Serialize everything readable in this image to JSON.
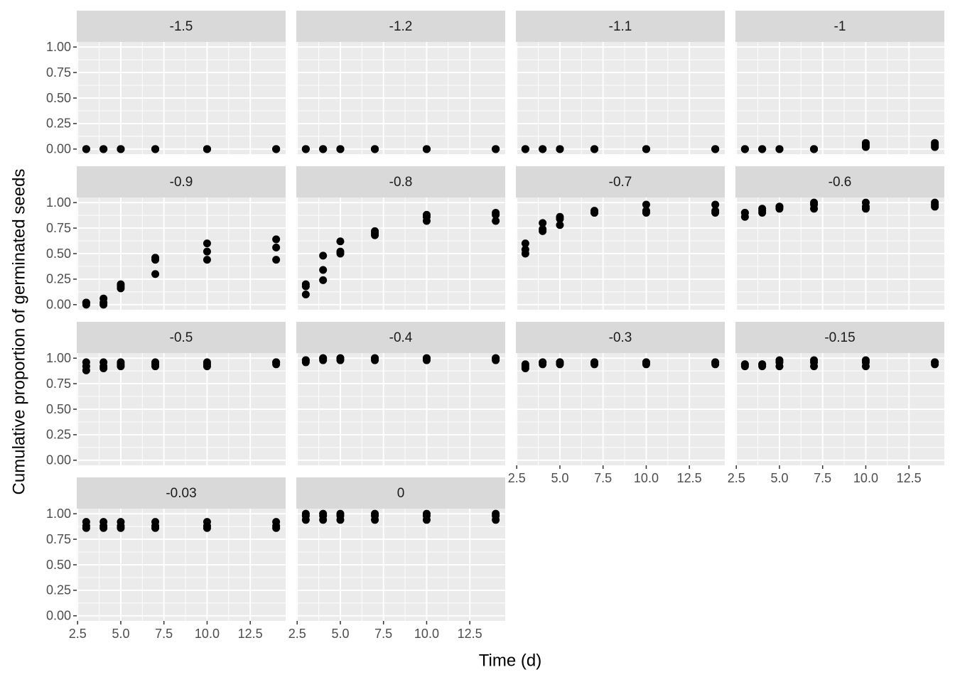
{
  "chart_data": {
    "type": "scatter",
    "xlabel": "Time (d)",
    "ylabel": "Cumulative proportion of germinated seeds",
    "color": "#000000",
    "grid": true,
    "xlim": [
      2.45,
      14.55
    ],
    "ylim": [
      -0.05,
      1.05
    ],
    "xticks": [
      2.5,
      {
        "value": 5,
        "label": "5.0"
      },
      7.5,
      {
        "value": 10,
        "label": "10.0"
      },
      12.5
    ],
    "yticks": [
      {
        "value": 0,
        "label": "0.00"
      },
      {
        "value": 0.25,
        "label": "0.25"
      },
      {
        "value": 0.5,
        "label": "0.50"
      },
      {
        "value": 0.75,
        "label": "0.75"
      },
      {
        "value": 1,
        "label": "1.00"
      }
    ],
    "panels": [
      {
        "title": "-1.5",
        "x": [
          3,
          3,
          3,
          4,
          4,
          4,
          5,
          5,
          5,
          7,
          7,
          7,
          10,
          10,
          10,
          14,
          14,
          14
        ],
        "y": [
          0,
          0,
          0,
          0,
          0,
          0,
          0,
          0,
          0,
          0,
          0,
          0,
          0,
          0,
          0,
          0,
          0,
          0
        ]
      },
      {
        "title": "-1.2",
        "x": [
          3,
          3,
          3,
          4,
          4,
          4,
          5,
          5,
          5,
          7,
          7,
          7,
          10,
          10,
          10,
          14,
          14,
          14
        ],
        "y": [
          0,
          0,
          0,
          0,
          0,
          0,
          0,
          0,
          0,
          0,
          0,
          0,
          0,
          0,
          0,
          0,
          0,
          0
        ]
      },
      {
        "title": "-1.1",
        "x": [
          3,
          3,
          3,
          4,
          4,
          4,
          5,
          5,
          5,
          7,
          7,
          7,
          10,
          10,
          10,
          14,
          14,
          14
        ],
        "y": [
          0,
          0,
          0,
          0,
          0,
          0,
          0,
          0,
          0,
          0,
          0,
          0,
          0,
          0,
          0,
          0,
          0,
          0
        ]
      },
      {
        "title": "-1",
        "x": [
          3,
          3,
          3,
          4,
          4,
          4,
          5,
          5,
          5,
          7,
          7,
          7,
          10,
          10,
          10,
          14,
          14,
          14
        ],
        "y": [
          0,
          0,
          0,
          0,
          0,
          0,
          0,
          0,
          0,
          0,
          0,
          0,
          0.02,
          0.04,
          0.06,
          0.02,
          0.04,
          0.06
        ]
      },
      {
        "title": "-0.9",
        "x": [
          3,
          3,
          3,
          4,
          4,
          4,
          5,
          5,
          5,
          7,
          7,
          7,
          10,
          10,
          10,
          14,
          14,
          14
        ],
        "y": [
          0,
          0.02,
          0.02,
          0,
          0.02,
          0.06,
          0.16,
          0.18,
          0.2,
          0.3,
          0.44,
          0.46,
          0.44,
          0.52,
          0.6,
          0.44,
          0.56,
          0.64
        ]
      },
      {
        "title": "-0.8",
        "x": [
          3,
          3,
          3,
          4,
          4,
          4,
          5,
          5,
          5,
          7,
          7,
          7,
          10,
          10,
          10,
          14,
          14,
          14
        ],
        "y": [
          0.1,
          0.18,
          0.2,
          0.24,
          0.34,
          0.48,
          0.5,
          0.52,
          0.62,
          0.68,
          0.7,
          0.72,
          0.82,
          0.86,
          0.88,
          0.82,
          0.88,
          0.9
        ]
      },
      {
        "title": "-0.7",
        "x": [
          3,
          3,
          3,
          4,
          4,
          4,
          5,
          5,
          5,
          7,
          7,
          7,
          10,
          10,
          10,
          14,
          14,
          14
        ],
        "y": [
          0.5,
          0.54,
          0.6,
          0.72,
          0.74,
          0.8,
          0.78,
          0.84,
          0.86,
          0.9,
          0.9,
          0.92,
          0.9,
          0.92,
          0.98,
          0.9,
          0.92,
          0.98
        ]
      },
      {
        "title": "-0.6",
        "x": [
          3,
          3,
          3,
          4,
          4,
          4,
          5,
          5,
          5,
          7,
          7,
          7,
          10,
          10,
          10,
          14,
          14,
          14
        ],
        "y": [
          0.86,
          0.9,
          0.9,
          0.9,
          0.92,
          0.94,
          0.94,
          0.96,
          0.96,
          0.94,
          0.98,
          1,
          0.94,
          0.96,
          1,
          0.96,
          0.98,
          1
        ]
      },
      {
        "title": "-0.5",
        "x": [
          3,
          3,
          3,
          4,
          4,
          4,
          5,
          5,
          5,
          7,
          7,
          7,
          10,
          10,
          10,
          14,
          14,
          14
        ],
        "y": [
          0.88,
          0.92,
          0.96,
          0.9,
          0.92,
          0.96,
          0.92,
          0.94,
          0.96,
          0.92,
          0.94,
          0.96,
          0.92,
          0.94,
          0.96,
          0.94,
          0.96,
          0.96
        ]
      },
      {
        "title": "-0.4",
        "x": [
          3,
          3,
          3,
          4,
          4,
          4,
          5,
          5,
          5,
          7,
          7,
          7,
          10,
          10,
          10,
          14,
          14,
          14
        ],
        "y": [
          0.96,
          0.98,
          0.98,
          0.98,
          1,
          1,
          0.98,
          1,
          1,
          0.98,
          1,
          1,
          0.98,
          1,
          1,
          0.98,
          1,
          1
        ]
      },
      {
        "title": "-0.3",
        "x": [
          3,
          3,
          3,
          4,
          4,
          4,
          5,
          5,
          5,
          7,
          7,
          7,
          10,
          10,
          10,
          14,
          14,
          14
        ],
        "y": [
          0.9,
          0.92,
          0.94,
          0.94,
          0.96,
          0.96,
          0.94,
          0.96,
          0.96,
          0.94,
          0.96,
          0.96,
          0.94,
          0.96,
          0.96,
          0.94,
          0.96,
          0.96
        ]
      },
      {
        "title": "-0.15",
        "x": [
          3,
          3,
          3,
          4,
          4,
          4,
          5,
          5,
          5,
          7,
          7,
          7,
          10,
          10,
          10,
          14,
          14,
          14
        ],
        "y": [
          0.92,
          0.94,
          0.94,
          0.92,
          0.94,
          0.94,
          0.92,
          0.96,
          0.98,
          0.92,
          0.96,
          0.98,
          0.92,
          0.96,
          0.98,
          0.94,
          0.96,
          0.96
        ]
      },
      {
        "title": "-0.03",
        "x": [
          3,
          3,
          3,
          4,
          4,
          4,
          5,
          5,
          5,
          7,
          7,
          7,
          10,
          10,
          10,
          14,
          14,
          14
        ],
        "y": [
          0.86,
          0.88,
          0.92,
          0.86,
          0.88,
          0.92,
          0.86,
          0.88,
          0.92,
          0.86,
          0.88,
          0.92,
          0.86,
          0.88,
          0.92,
          0.86,
          0.88,
          0.92
        ]
      },
      {
        "title": "0",
        "x": [
          3,
          3,
          3,
          4,
          4,
          4,
          5,
          5,
          5,
          7,
          7,
          7,
          10,
          10,
          10,
          14,
          14,
          14
        ],
        "y": [
          0.94,
          0.98,
          1,
          0.94,
          0.98,
          1,
          0.94,
          0.98,
          1,
          0.94,
          0.98,
          1,
          0.94,
          0.98,
          1,
          0.94,
          0.98,
          1
        ]
      }
    ]
  }
}
